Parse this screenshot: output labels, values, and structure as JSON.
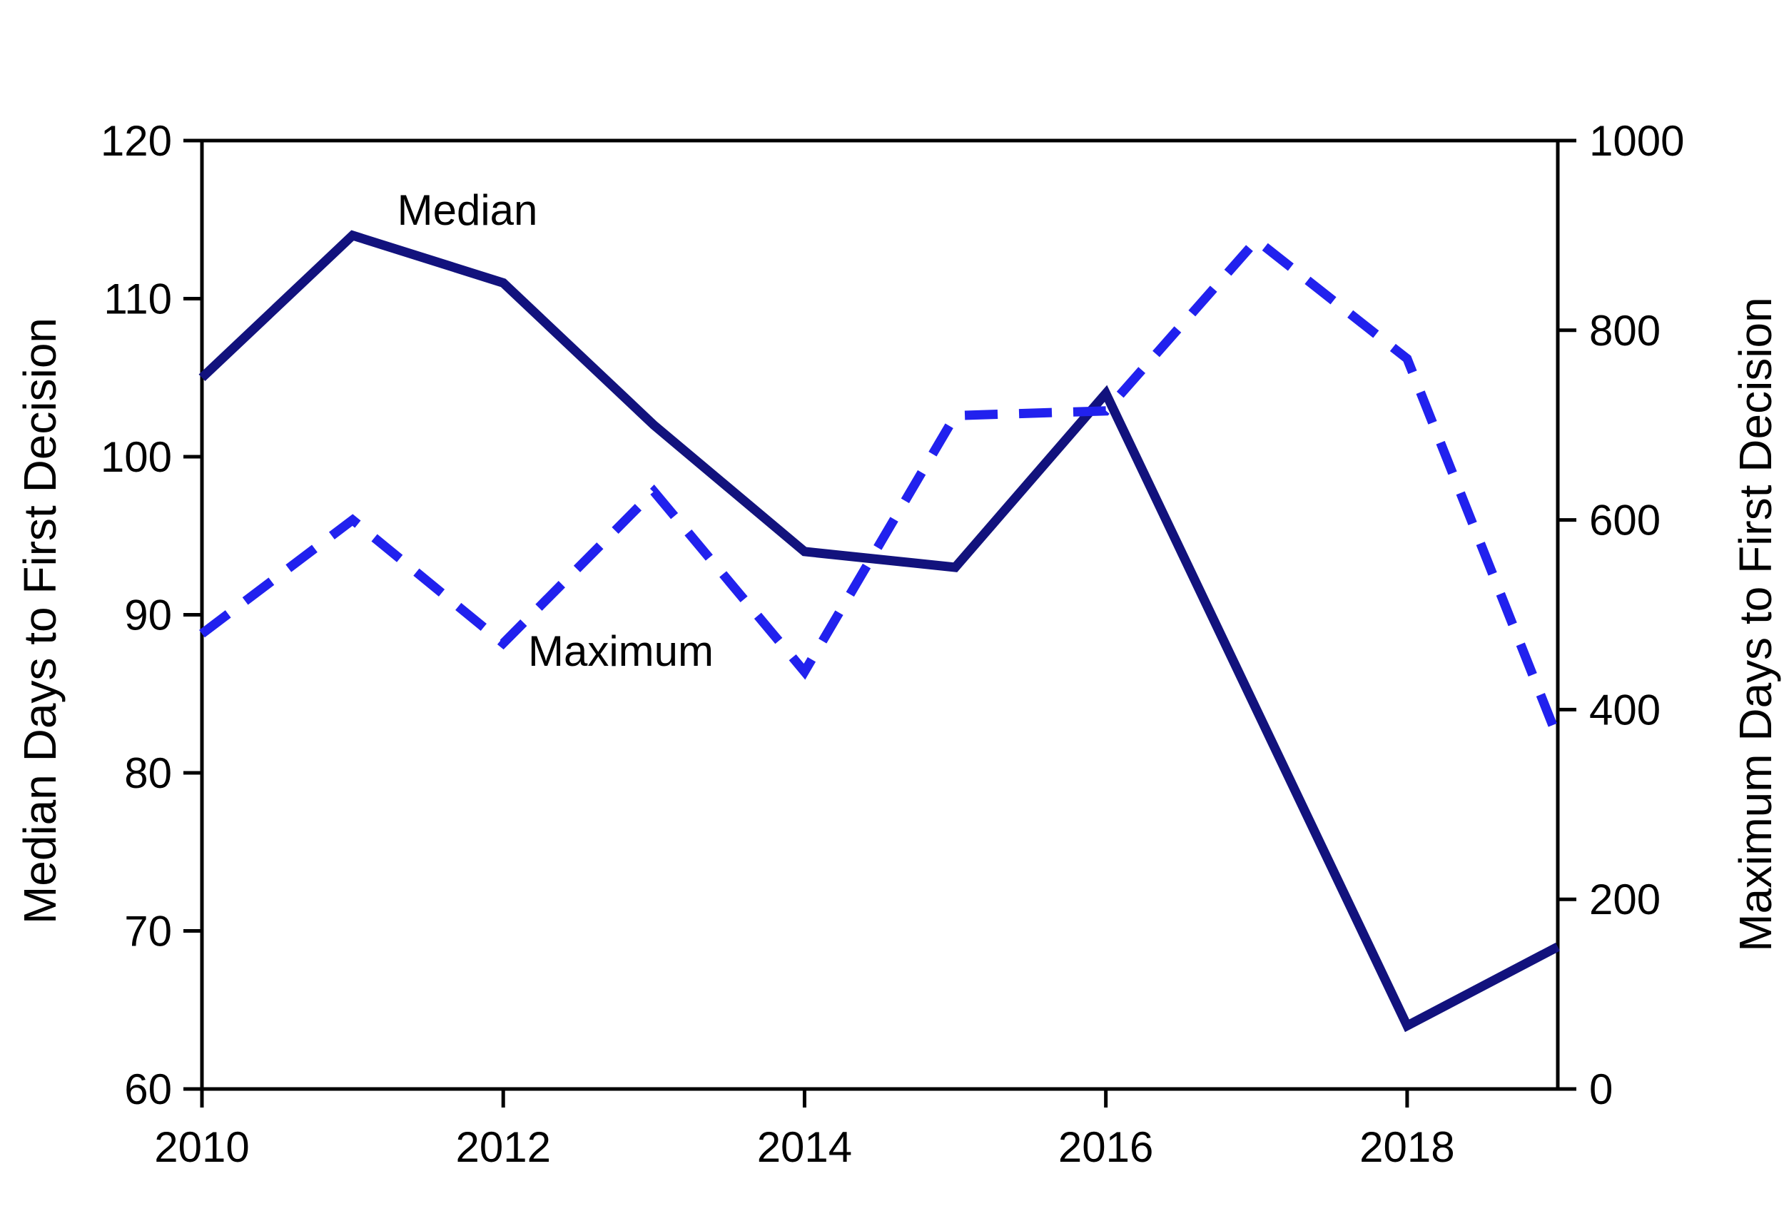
{
  "figure": {
    "background": "#ffffff",
    "annotations": {
      "median": "Median",
      "maximum": "Maximum"
    },
    "axes": {
      "left": {
        "title": "Median Days to First Decision",
        "ticks": [
          60,
          70,
          80,
          90,
          100,
          110,
          120
        ],
        "range": [
          60,
          120
        ]
      },
      "right": {
        "title": "Maximum Days to First Decision",
        "ticks": [
          0,
          200,
          400,
          600,
          800,
          1000
        ],
        "range": [
          0,
          1000
        ]
      },
      "bottom": {
        "ticks": [
          2010,
          2012,
          2014,
          2016,
          2018
        ],
        "range": [
          2010,
          2019
        ]
      }
    },
    "colors": {
      "median_line": "#12127d",
      "maximum_line": "#2121ee",
      "axis": "#000000"
    }
  },
  "chart_data": {
    "type": "line",
    "x": [
      2010,
      2011,
      2012,
      2013,
      2014,
      2015,
      2016,
      2017,
      2018,
      2019
    ],
    "series": [
      {
        "name": "Median",
        "axis": "left",
        "line_style": "solid",
        "color": "#12127d",
        "values": [
          105,
          114,
          111,
          102,
          94,
          93,
          104,
          84,
          64,
          69
        ]
      },
      {
        "name": "Maximum",
        "axis": "right",
        "line_style": "dashed",
        "color": "#2121ee",
        "values": [
          480,
          600,
          470,
          630,
          440,
          710,
          715,
          895,
          770,
          370
        ]
      }
    ],
    "title": "",
    "xlabel": "",
    "ylabel_left": "Median Days to First Decision",
    "ylabel_right": "Maximum Days to First Decision",
    "xlim": [
      2010,
      2019
    ],
    "ylim_left": [
      60,
      120
    ],
    "ylim_right": [
      0,
      1000
    ],
    "grid": false,
    "legend_position": "inline-annotations"
  }
}
